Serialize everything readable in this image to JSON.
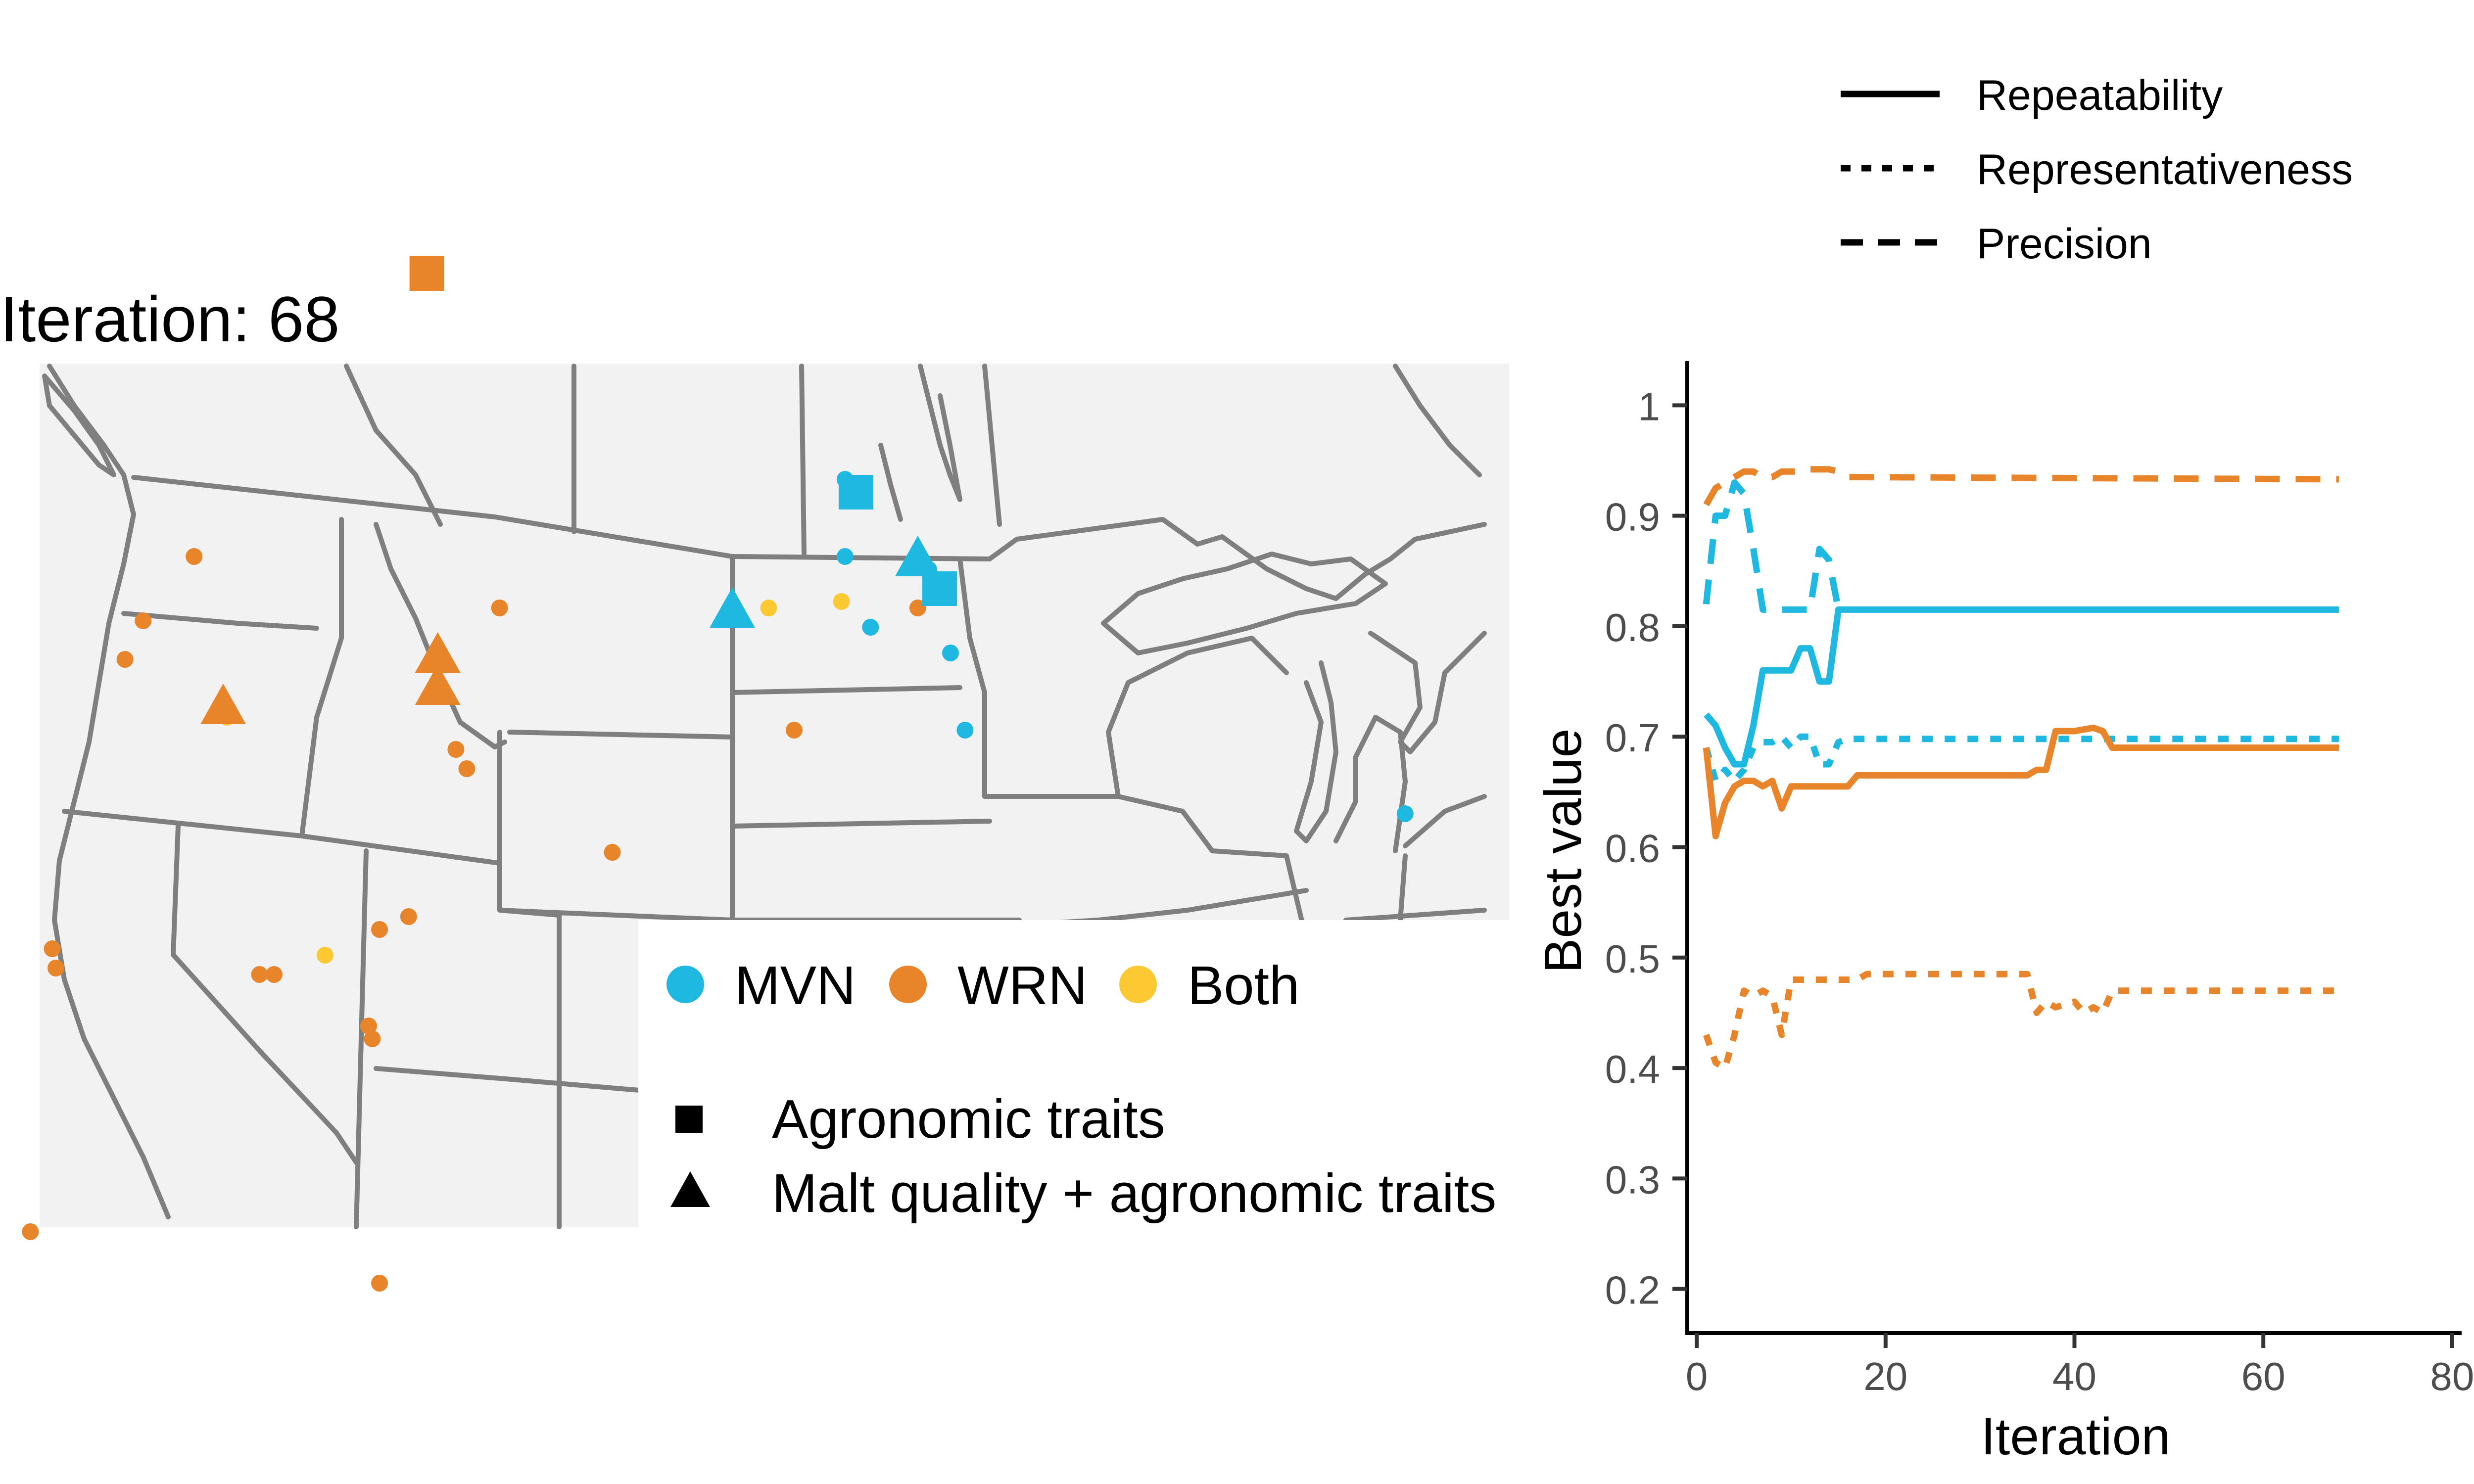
{
  "colors": {
    "mvn": "#1fb8e0",
    "wrn": "#e8842a",
    "both": "#fcc932",
    "map_bg": "#f2f2f2",
    "borders": "#7f7f7f",
    "axis": "#000000"
  },
  "map": {
    "title": "Iteration: 68",
    "legend_population": [
      {
        "key": "mvn",
        "label": "MVN",
        "color": "#1fb8e0"
      },
      {
        "key": "wrn",
        "label": "WRN",
        "color": "#e8842a"
      },
      {
        "key": "both",
        "label": "Both",
        "color": "#fcc932"
      }
    ],
    "legend_shape": [
      {
        "shape": "square",
        "label": "Agronomic traits"
      },
      {
        "shape": "triangle",
        "label": "Malt quality + agronomic traits"
      }
    ],
    "sites": [
      {
        "lon": -111.4,
        "lat": 53.4,
        "pop": "wrn",
        "shape": "square"
      },
      {
        "lon": -99.6,
        "lat": 50.0,
        "pop": "mvn",
        "shape": "square"
      },
      {
        "lon": -97.3,
        "lat": 48.5,
        "pop": "mvn",
        "shape": "square"
      },
      {
        "lon": -117.0,
        "lat": 46.7,
        "pop": "wrn",
        "shape": "triangle"
      },
      {
        "lon": -111.1,
        "lat": 47.5,
        "pop": "wrn",
        "shape": "triangle"
      },
      {
        "lon": -111.1,
        "lat": 47.0,
        "pop": "wrn",
        "shape": "triangle"
      },
      {
        "lon": -103.0,
        "lat": 48.2,
        "pop": "mvn",
        "shape": "triangle"
      },
      {
        "lon": -97.9,
        "lat": 49.0,
        "pop": "mvn",
        "shape": "triangle"
      },
      {
        "lon": -99.9,
        "lat": 50.2,
        "pop": "mvn",
        "shape": "circle"
      },
      {
        "lon": -99.9,
        "lat": 49.0,
        "pop": "mvn",
        "shape": "circle"
      },
      {
        "lon": -97.6,
        "lat": 48.8,
        "pop": "mvn",
        "shape": "circle"
      },
      {
        "lon": -99.2,
        "lat": 47.9,
        "pop": "mvn",
        "shape": "circle"
      },
      {
        "lon": -97.0,
        "lat": 47.5,
        "pop": "mvn",
        "shape": "circle"
      },
      {
        "lon": -96.6,
        "lat": 46.3,
        "pop": "mvn",
        "shape": "circle"
      },
      {
        "lon": -93.6,
        "lat": 42.0,
        "pop": "mvn",
        "shape": "circle"
      },
      {
        "lon": -89.4,
        "lat": 43.1,
        "pop": "mvn",
        "shape": "circle"
      },
      {
        "lon": -84.5,
        "lat": 45.0,
        "pop": "mvn",
        "shape": "circle"
      },
      {
        "lon": -117.8,
        "lat": 49.0,
        "pop": "wrn",
        "shape": "circle"
      },
      {
        "lon": -119.2,
        "lat": 48.0,
        "pop": "wrn",
        "shape": "circle"
      },
      {
        "lon": -119.7,
        "lat": 47.4,
        "pop": "wrn",
        "shape": "circle"
      },
      {
        "lon": -109.4,
        "lat": 48.2,
        "pop": "wrn",
        "shape": "circle"
      },
      {
        "lon": -97.9,
        "lat": 48.2,
        "pop": "wrn",
        "shape": "circle"
      },
      {
        "lon": -110.6,
        "lat": 46.0,
        "pop": "wrn",
        "shape": "circle"
      },
      {
        "lon": -110.3,
        "lat": 45.7,
        "pop": "wrn",
        "shape": "circle"
      },
      {
        "lon": -101.3,
        "lat": 46.3,
        "pop": "wrn",
        "shape": "circle"
      },
      {
        "lon": -106.3,
        "lat": 44.4,
        "pop": "wrn",
        "shape": "circle"
      },
      {
        "lon": -121.7,
        "lat": 42.9,
        "pop": "wrn",
        "shape": "circle"
      },
      {
        "lon": -121.6,
        "lat": 42.6,
        "pop": "wrn",
        "shape": "circle"
      },
      {
        "lon": -116.0,
        "lat": 42.5,
        "pop": "wrn",
        "shape": "circle"
      },
      {
        "lon": -115.6,
        "lat": 42.5,
        "pop": "wrn",
        "shape": "circle"
      },
      {
        "lon": -112.7,
        "lat": 43.2,
        "pop": "wrn",
        "shape": "circle"
      },
      {
        "lon": -111.9,
        "lat": 43.4,
        "pop": "wrn",
        "shape": "circle"
      },
      {
        "lon": -113.0,
        "lat": 41.7,
        "pop": "wrn",
        "shape": "circle"
      },
      {
        "lon": -112.9,
        "lat": 41.5,
        "pop": "wrn",
        "shape": "circle"
      },
      {
        "lon": -122.3,
        "lat": 38.5,
        "pop": "wrn",
        "shape": "circle"
      },
      {
        "lon": -112.7,
        "lat": 37.7,
        "pop": "wrn",
        "shape": "circle"
      },
      {
        "lon": -116.9,
        "lat": 46.5,
        "pop": "both",
        "shape": "circle"
      },
      {
        "lon": -102.0,
        "lat": 48.2,
        "pop": "both",
        "shape": "circle"
      },
      {
        "lon": -100.0,
        "lat": 48.3,
        "pop": "both",
        "shape": "circle"
      },
      {
        "lon": -97.9,
        "lat": 49.0,
        "pop": "both",
        "shape": "circle"
      },
      {
        "lon": -114.2,
        "lat": 42.8,
        "pop": "both",
        "shape": "circle"
      }
    ]
  },
  "chart_data": {
    "type": "line",
    "xlabel": "Iteration",
    "ylabel": "Best value",
    "xlim": [
      -1,
      81
    ],
    "ylim": [
      0.16,
      1.04
    ],
    "x_ticks": [
      0,
      20,
      40,
      60,
      80
    ],
    "y_ticks": [
      0.2,
      0.3,
      0.4,
      0.5,
      0.6,
      0.7,
      0.8,
      0.9,
      1
    ],
    "x_tick_labels": [
      "0",
      "20",
      "40",
      "60",
      "80"
    ],
    "y_tick_labels": [
      "0.2",
      "0.3",
      "0.4",
      "0.5",
      "0.6",
      "0.7",
      "0.8",
      "0.9",
      "1"
    ],
    "grid": false,
    "legend": {
      "position": "top-right",
      "items": [
        {
          "linetype": "solid",
          "label": "Repeatability"
        },
        {
          "linetype": "dotted",
          "label": "Representativeness"
        },
        {
          "linetype": "dashed",
          "label": "Precision"
        }
      ]
    },
    "series": [
      {
        "population": "MVN",
        "metric": "Repeatability",
        "x": [
          1,
          2,
          3,
          4,
          5,
          6,
          7,
          8,
          9,
          10,
          11,
          12,
          13,
          14,
          15,
          16,
          68
        ],
        "y": [
          0.72,
          0.71,
          0.69,
          0.675,
          0.675,
          0.71,
          0.76,
          0.76,
          0.76,
          0.76,
          0.78,
          0.78,
          0.75,
          0.75,
          0.815,
          0.815,
          0.815
        ]
      },
      {
        "population": "MVN",
        "metric": "Representativeness",
        "x": [
          1,
          2,
          3,
          4,
          5,
          6,
          7,
          8,
          9,
          10,
          11,
          12,
          13,
          14,
          15,
          16,
          68
        ],
        "y": [
          0.69,
          0.66,
          0.67,
          0.66,
          0.67,
          0.69,
          0.695,
          0.695,
          0.7,
          0.69,
          0.7,
          0.7,
          0.675,
          0.675,
          0.695,
          0.698,
          0.698
        ]
      },
      {
        "population": "MVN",
        "metric": "Precision",
        "x": [
          1,
          2,
          3,
          4,
          5,
          6,
          7,
          8,
          9,
          10,
          11,
          12,
          13,
          14,
          15
        ],
        "y": [
          0.82,
          0.9,
          0.9,
          0.93,
          0.92,
          0.87,
          0.815,
          0.815,
          0.815,
          0.815,
          0.815,
          0.815,
          0.87,
          0.86,
          0.815
        ]
      },
      {
        "population": "WRN",
        "metric": "Repeatability",
        "x": [
          1,
          2,
          3,
          4,
          5,
          6,
          7,
          8,
          9,
          10,
          11,
          12,
          13,
          16,
          17,
          35,
          36,
          37,
          38,
          40,
          42,
          43,
          44,
          68
        ],
        "y": [
          0.69,
          0.61,
          0.64,
          0.655,
          0.66,
          0.66,
          0.655,
          0.66,
          0.635,
          0.655,
          0.655,
          0.655,
          0.655,
          0.655,
          0.665,
          0.665,
          0.67,
          0.67,
          0.705,
          0.705,
          0.708,
          0.705,
          0.69,
          0.69
        ]
      },
      {
        "population": "WRN",
        "metric": "Representativeness",
        "x": [
          1,
          2,
          3,
          4,
          5,
          6,
          7,
          8,
          9,
          10,
          11,
          17,
          18,
          35,
          36,
          37,
          38,
          40,
          41,
          42,
          43,
          44,
          68
        ],
        "y": [
          0.43,
          0.405,
          0.4,
          0.43,
          0.47,
          0.465,
          0.47,
          0.465,
          0.43,
          0.48,
          0.48,
          0.48,
          0.485,
          0.485,
          0.45,
          0.46,
          0.455,
          0.46,
          0.45,
          0.455,
          0.45,
          0.47,
          0.47
        ]
      },
      {
        "population": "WRN",
        "metric": "Precision",
        "x": [
          1,
          2,
          3,
          4,
          5,
          6,
          7,
          8,
          9,
          10,
          11,
          12,
          13,
          14,
          15,
          16,
          17,
          68
        ],
        "y": [
          0.91,
          0.925,
          0.93,
          0.935,
          0.94,
          0.94,
          0.935,
          0.935,
          0.94,
          0.94,
          0.94,
          0.942,
          0.942,
          0.942,
          0.94,
          0.935,
          0.935,
          0.933
        ]
      }
    ]
  }
}
